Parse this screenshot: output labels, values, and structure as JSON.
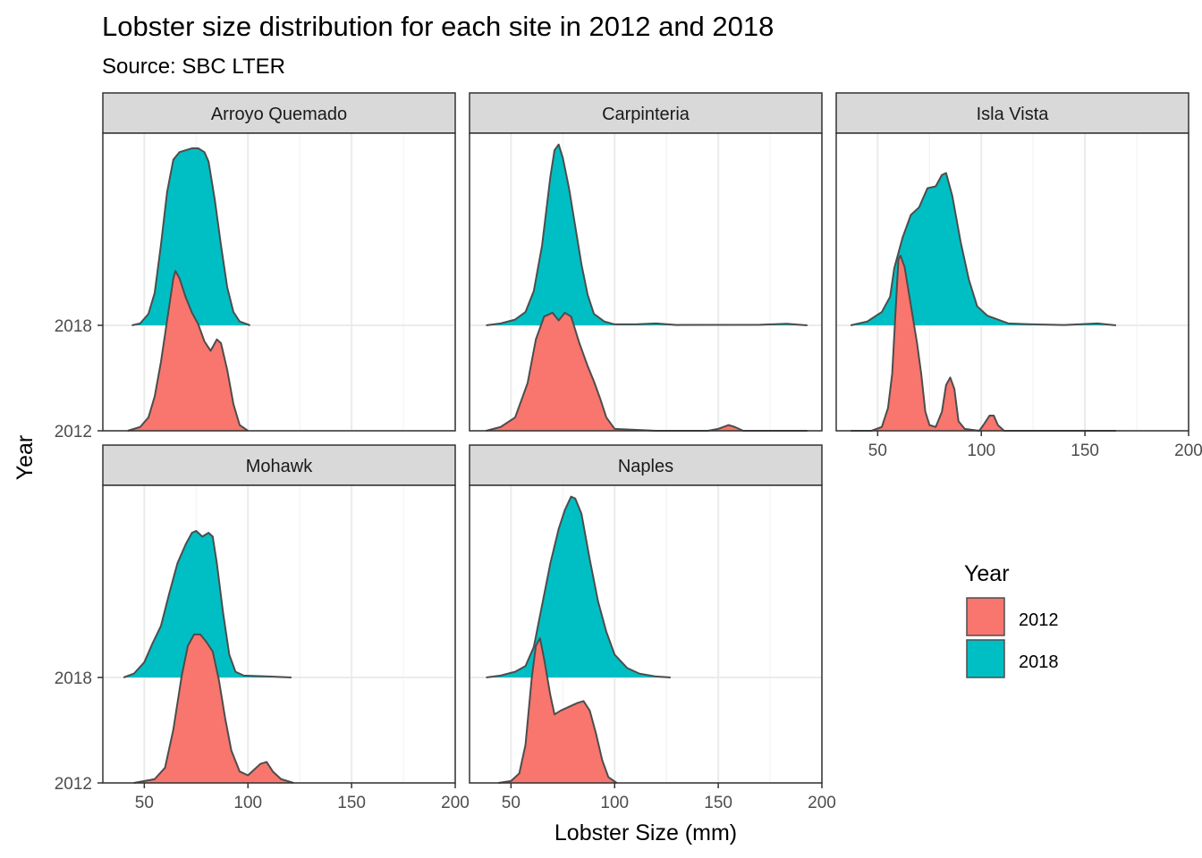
{
  "chart_data": {
    "type": "ridgeline",
    "title": "Lobster size distribution for each site in 2012 and 2018",
    "subtitle": "Source: SBC LTER",
    "xlabel": "Lobster Size (mm)",
    "ylabel": "Year",
    "x_ticks": [
      50,
      100,
      150,
      200
    ],
    "xlim": [
      30,
      200
    ],
    "y_categories": [
      "2012",
      "2018"
    ],
    "grid": true,
    "legend": {
      "title": "Year",
      "position": "right",
      "entries": [
        {
          "label": "2012",
          "color": "#F8766D"
        },
        {
          "label": "2018",
          "color": "#00BFC4"
        }
      ]
    },
    "panels": [
      {
        "site": "Arroyo Quemado",
        "series": [
          {
            "name": "2018",
            "points": [
              [
                44,
                0
              ],
              [
                48,
                0.01
              ],
              [
                52,
                0.06
              ],
              [
                55,
                0.17
              ],
              [
                58,
                0.42
              ],
              [
                61,
                0.7
              ],
              [
                64,
                0.87
              ],
              [
                67,
                0.91
              ],
              [
                70,
                0.92
              ],
              [
                73,
                0.93
              ],
              [
                76,
                0.93
              ],
              [
                79,
                0.91
              ],
              [
                81,
                0.86
              ],
              [
                84,
                0.66
              ],
              [
                87,
                0.42
              ],
              [
                90,
                0.2
              ],
              [
                93,
                0.07
              ],
              [
                96,
                0.02
              ],
              [
                101,
                0
              ]
            ]
          },
          {
            "name": "2012",
            "points": [
              [
                42,
                0
              ],
              [
                48,
                0.02
              ],
              [
                52,
                0.07
              ],
              [
                55,
                0.18
              ],
              [
                58,
                0.36
              ],
              [
                61,
                0.58
              ],
              [
                64,
                0.8
              ],
              [
                65,
                0.84
              ],
              [
                67,
                0.8
              ],
              [
                70,
                0.7
              ],
              [
                73,
                0.62
              ],
              [
                76,
                0.56
              ],
              [
                79,
                0.47
              ],
              [
                82,
                0.42
              ],
              [
                85,
                0.48
              ],
              [
                87,
                0.46
              ],
              [
                90,
                0.32
              ],
              [
                93,
                0.14
              ],
              [
                96,
                0.03
              ],
              [
                100,
                0
              ]
            ]
          }
        ]
      },
      {
        "site": "Carpinteria",
        "series": [
          {
            "name": "2018",
            "points": [
              [
                38,
                0
              ],
              [
                45,
                0.01
              ],
              [
                52,
                0.03
              ],
              [
                57,
                0.07
              ],
              [
                61,
                0.18
              ],
              [
                65,
                0.42
              ],
              [
                69,
                0.78
              ],
              [
                71,
                0.92
              ],
              [
                73,
                0.95
              ],
              [
                75,
                0.88
              ],
              [
                78,
                0.72
              ],
              [
                81,
                0.52
              ],
              [
                84,
                0.32
              ],
              [
                87,
                0.16
              ],
              [
                90,
                0.06
              ],
              [
                95,
                0.02
              ],
              [
                100,
                0.005
              ],
              [
                110,
                0.005
              ],
              [
                120,
                0.01
              ],
              [
                130,
                0.002
              ],
              [
                170,
                0.003
              ],
              [
                183,
                0.008
              ],
              [
                193,
                0
              ]
            ]
          },
          {
            "name": "2012",
            "points": [
              [
                38,
                0
              ],
              [
                45,
                0.02
              ],
              [
                52,
                0.07
              ],
              [
                58,
                0.25
              ],
              [
                62,
                0.48
              ],
              [
                66,
                0.6
              ],
              [
                70,
                0.62
              ],
              [
                73,
                0.58
              ],
              [
                76,
                0.62
              ],
              [
                79,
                0.6
              ],
              [
                83,
                0.46
              ],
              [
                87,
                0.34
              ],
              [
                90,
                0.26
              ],
              [
                93,
                0.17
              ],
              [
                96,
                0.07
              ],
              [
                100,
                0.01
              ],
              [
                120,
                0
              ],
              [
                145,
                0
              ],
              [
                150,
                0.01
              ],
              [
                155,
                0.03
              ],
              [
                158,
                0.02
              ],
              [
                162,
                0
              ],
              [
                193,
                0
              ]
            ]
          }
        ]
      },
      {
        "site": "Isla Vista",
        "series": [
          {
            "name": "2018",
            "points": [
              [
                37,
                0
              ],
              [
                45,
                0.02
              ],
              [
                52,
                0.07
              ],
              [
                56,
                0.15
              ],
              [
                58,
                0.3
              ],
              [
                62,
                0.46
              ],
              [
                66,
                0.58
              ],
              [
                70,
                0.62
              ],
              [
                74,
                0.72
              ],
              [
                78,
                0.73
              ],
              [
                81,
                0.79
              ],
              [
                83,
                0.8
              ],
              [
                86,
                0.68
              ],
              [
                90,
                0.44
              ],
              [
                94,
                0.24
              ],
              [
                98,
                0.1
              ],
              [
                103,
                0.05
              ],
              [
                108,
                0.03
              ],
              [
                113,
                0.01
              ],
              [
                125,
                0.005
              ],
              [
                140,
                0.002
              ],
              [
                156,
                0.01
              ],
              [
                165,
                0
              ]
            ]
          },
          {
            "name": "2012",
            "points": [
              [
                37,
                0
              ],
              [
                47,
                0
              ],
              [
                52,
                0.02
              ],
              [
                55,
                0.12
              ],
              [
                57,
                0.3
              ],
              [
                59,
                0.7
              ],
              [
                60,
                0.9
              ],
              [
                61,
                0.92
              ],
              [
                63,
                0.86
              ],
              [
                66,
                0.66
              ],
              [
                69,
                0.46
              ],
              [
                71,
                0.3
              ],
              [
                73,
                0.1
              ],
              [
                75,
                0.03
              ],
              [
                78,
                0.02
              ],
              [
                81,
                0.1
              ],
              [
                83,
                0.24
              ],
              [
                85,
                0.28
              ],
              [
                87,
                0.22
              ],
              [
                89,
                0.05
              ],
              [
                92,
                0.01
              ],
              [
                99,
                0
              ],
              [
                101,
                0.03
              ],
              [
                104,
                0.08
              ],
              [
                106,
                0.08
              ],
              [
                108,
                0.03
              ],
              [
                111,
                0
              ],
              [
                165,
                0
              ]
            ]
          }
        ]
      },
      {
        "site": "Mohawk",
        "series": [
          {
            "name": "2018",
            "points": [
              [
                40,
                0
              ],
              [
                45,
                0.02
              ],
              [
                50,
                0.08
              ],
              [
                54,
                0.18
              ],
              [
                58,
                0.27
              ],
              [
                62,
                0.44
              ],
              [
                66,
                0.6
              ],
              [
                70,
                0.7
              ],
              [
                73,
                0.76
              ],
              [
                75,
                0.77
              ],
              [
                78,
                0.74
              ],
              [
                81,
                0.76
              ],
              [
                83,
                0.74
              ],
              [
                85,
                0.6
              ],
              [
                88,
                0.34
              ],
              [
                91,
                0.12
              ],
              [
                94,
                0.03
              ],
              [
                98,
                0.01
              ],
              [
                110,
                0.005
              ],
              [
                121,
                0
              ]
            ]
          },
          {
            "name": "2012",
            "points": [
              [
                45,
                0
              ],
              [
                55,
                0.02
              ],
              [
                60,
                0.08
              ],
              [
                64,
                0.28
              ],
              [
                68,
                0.56
              ],
              [
                71,
                0.72
              ],
              [
                74,
                0.78
              ],
              [
                77,
                0.78
              ],
              [
                80,
                0.74
              ],
              [
                83,
                0.69
              ],
              [
                86,
                0.54
              ],
              [
                89,
                0.34
              ],
              [
                92,
                0.17
              ],
              [
                96,
                0.06
              ],
              [
                100,
                0.04
              ],
              [
                103,
                0.07
              ],
              [
                106,
                0.1
              ],
              [
                109,
                0.11
              ],
              [
                112,
                0.06
              ],
              [
                116,
                0.02
              ],
              [
                122,
                0
              ]
            ]
          }
        ]
      },
      {
        "site": "Naples",
        "series": [
          {
            "name": "2018",
            "points": [
              [
                38,
                0
              ],
              [
                45,
                0.01
              ],
              [
                52,
                0.03
              ],
              [
                57,
                0.06
              ],
              [
                61,
                0.16
              ],
              [
                65,
                0.38
              ],
              [
                69,
                0.6
              ],
              [
                73,
                0.78
              ],
              [
                76,
                0.88
              ],
              [
                79,
                0.95
              ],
              [
                81,
                0.94
              ],
              [
                84,
                0.86
              ],
              [
                88,
                0.62
              ],
              [
                92,
                0.4
              ],
              [
                96,
                0.24
              ],
              [
                100,
                0.12
              ],
              [
                106,
                0.05
              ],
              [
                112,
                0.02
              ],
              [
                120,
                0.005
              ],
              [
                127,
                0
              ]
            ]
          },
          {
            "name": "2012",
            "points": [
              [
                44,
                0
              ],
              [
                50,
                0.01
              ],
              [
                54,
                0.05
              ],
              [
                57,
                0.2
              ],
              [
                60,
                0.55
              ],
              [
                62,
                0.72
              ],
              [
                64,
                0.76
              ],
              [
                66,
                0.65
              ],
              [
                69,
                0.46
              ],
              [
                71,
                0.36
              ],
              [
                74,
                0.38
              ],
              [
                78,
                0.4
              ],
              [
                82,
                0.42
              ],
              [
                85,
                0.43
              ],
              [
                88,
                0.38
              ],
              [
                91,
                0.26
              ],
              [
                94,
                0.12
              ],
              [
                97,
                0.03
              ],
              [
                101,
                0
              ]
            ]
          }
        ]
      }
    ]
  }
}
